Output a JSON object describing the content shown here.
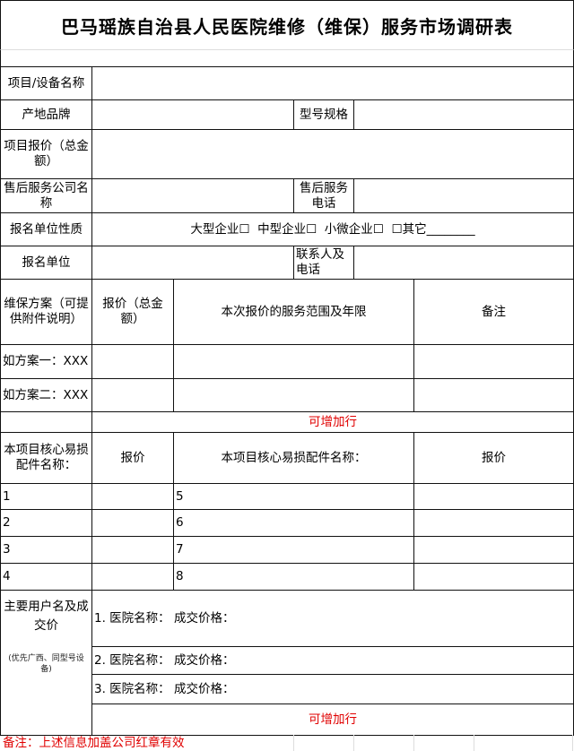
{
  "title": "巴马瑶族自治县人民医院维修（维保）服务市场调研表",
  "labels": {
    "item_name": "项目/设备名称",
    "brand": "产地品牌",
    "model": "型号规格",
    "total_quote": "项目报价（总金额）",
    "service_company": "售后服务公司名称",
    "service_phone": "售后服务电话",
    "unit_type": "报名单位性质",
    "unit_type_options": "大型企业☐  中型企业☐  小微企业☐  ☐其它________",
    "unit": "报名单位",
    "contact": "联系人及电话"
  },
  "plans": {
    "headers": [
      "维保方案（可提供附件说明）",
      "报价（总金额）",
      "本次报价的服务范围及年限",
      "备注"
    ],
    "rows": [
      "如方案一：XXX",
      "如方案二：XXX"
    ],
    "add_rows": "可增加行"
  },
  "parts": {
    "headers": [
      "本项目核心易损配件名称：",
      "报价",
      "本项目核心易损配件名称：",
      "报价"
    ],
    "left_numbers": [
      "1",
      "2",
      "3",
      "4"
    ],
    "right_numbers": [
      "5",
      "6",
      "7",
      "8"
    ]
  },
  "users": {
    "label": "主要用户名及成交价",
    "sub_label": "(优先广西、同型号设备)",
    "rows": [
      "1. 医院名称：  成交价格：",
      "2. 医院名称：  成交价格：",
      "3. 医院名称：  成交价格："
    ],
    "add_rows": "可增加行"
  },
  "remark": "备注：上述信息加盖公司红章有效",
  "colors": {
    "red_text": "#e00000",
    "border": "#111111"
  }
}
